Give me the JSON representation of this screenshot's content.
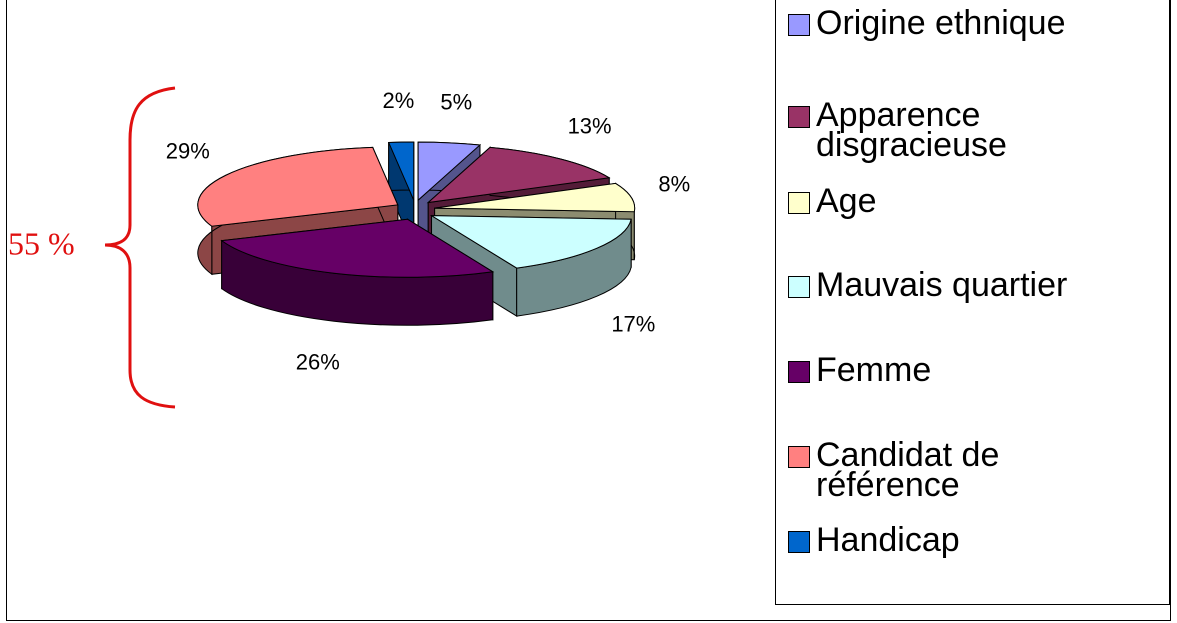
{
  "chart_data": {
    "type": "pie",
    "categories": [
      "Origine ethnique",
      "Apparence disgracieuse",
      "Age",
      "Mauvais quartier",
      "Femme",
      "Candidat de référence",
      "Handicap"
    ],
    "values": [
      5,
      13,
      8,
      17,
      26,
      29,
      2
    ],
    "value_labels": [
      "5%",
      "13%",
      "8%",
      "17%",
      "26%",
      "29%",
      "2%"
    ],
    "colors": [
      "#9999ff",
      "#993366",
      "#ffffcc",
      "#ccffff",
      "#660066",
      "#ff8080",
      "#0066cc"
    ],
    "annotation": "55 %",
    "legend": "right"
  }
}
